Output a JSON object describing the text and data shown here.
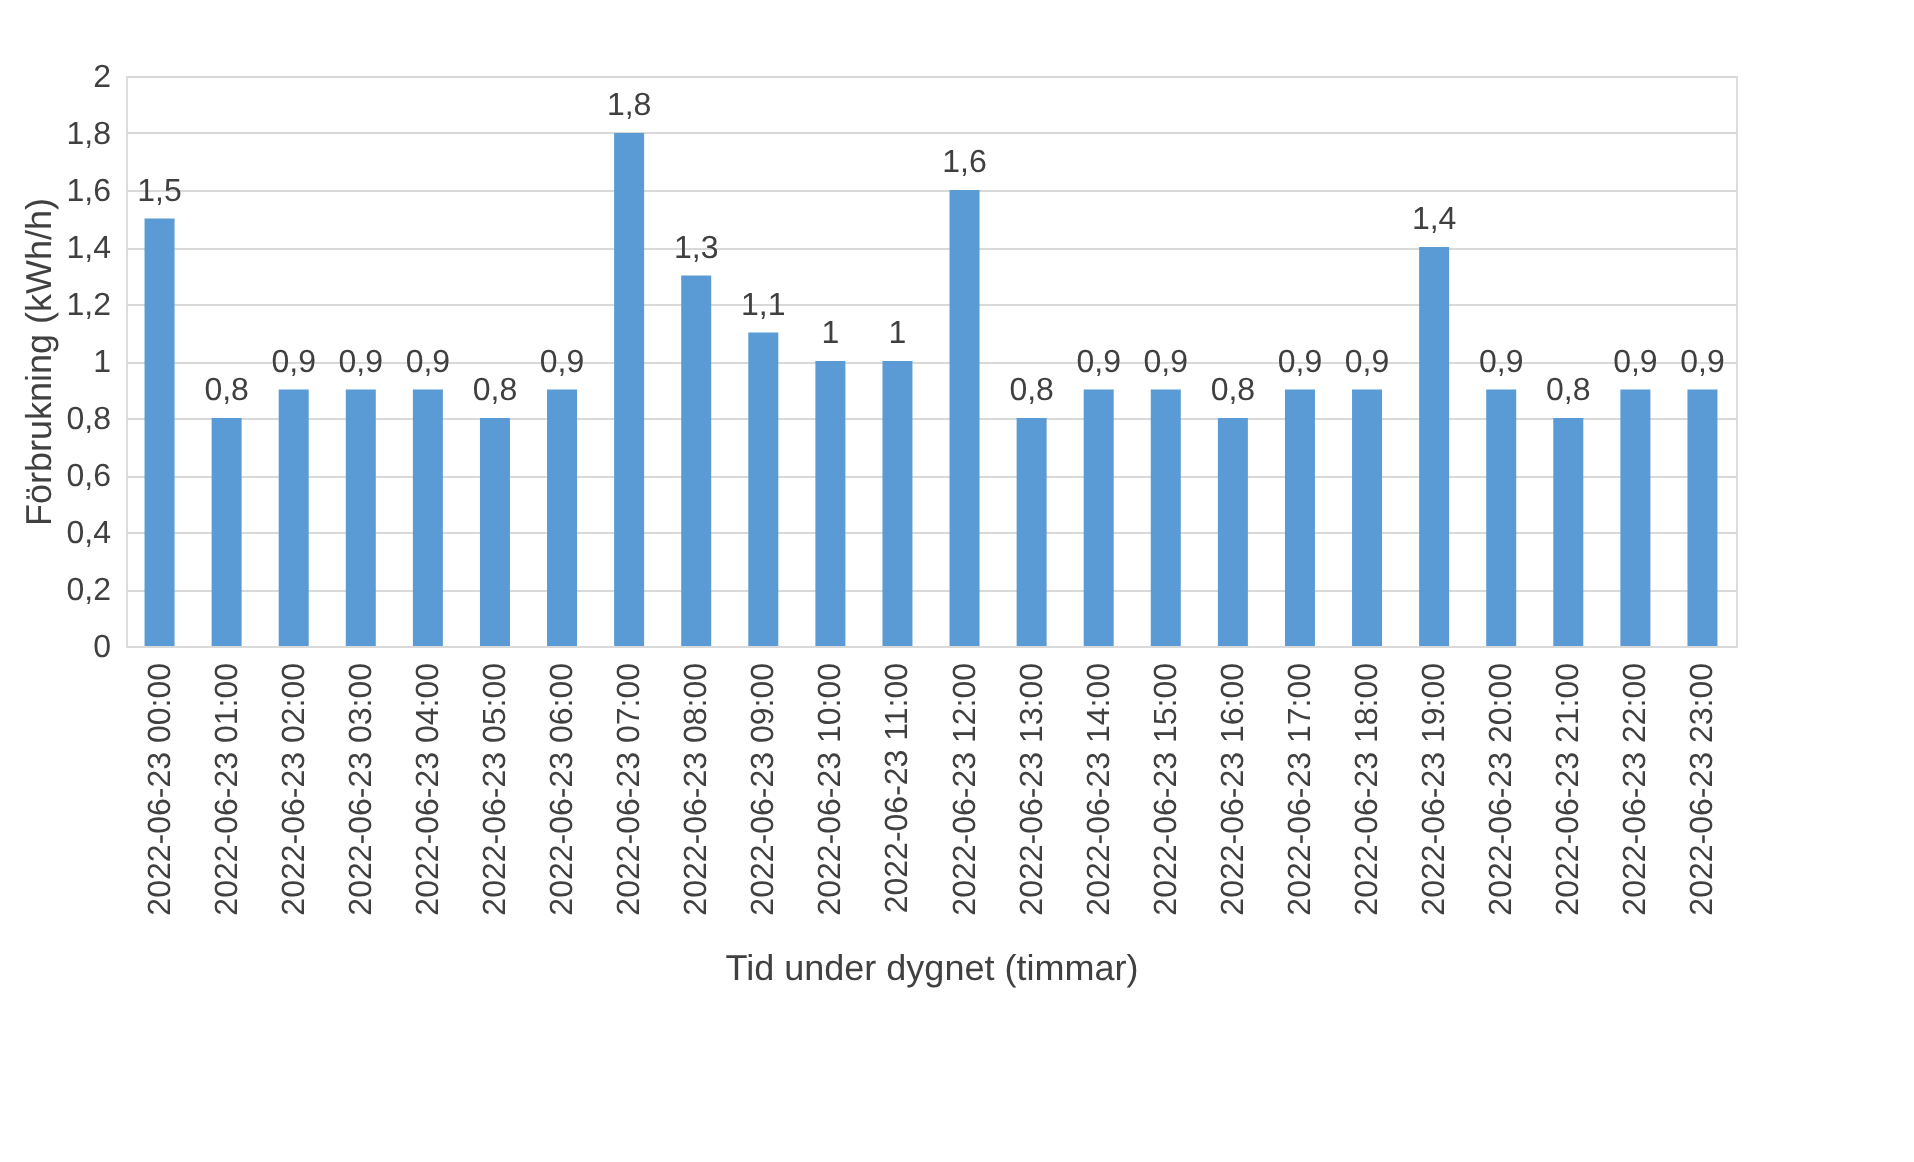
{
  "chart_data": {
    "type": "bar",
    "xlabel": "Tid under dygnet (timmar)",
    "ylabel": "Förbrukning (kWh/h)",
    "categories": [
      "2022-06-23 00:00",
      "2022-06-23 01:00",
      "2022-06-23 02:00",
      "2022-06-23 03:00",
      "2022-06-23 04:00",
      "2022-06-23 05:00",
      "2022-06-23 06:00",
      "2022-06-23 07:00",
      "2022-06-23 08:00",
      "2022-06-23 09:00",
      "2022-06-23 10:00",
      "2022-06-23 11:00",
      "2022-06-23 12:00",
      "2022-06-23 13:00",
      "2022-06-23 14:00",
      "2022-06-23 15:00",
      "2022-06-23 16:00",
      "2022-06-23 17:00",
      "2022-06-23 18:00",
      "2022-06-23 19:00",
      "2022-06-23 20:00",
      "2022-06-23 21:00",
      "2022-06-23 22:00",
      "2022-06-23 23:00"
    ],
    "values": [
      1.5,
      0.8,
      0.9,
      0.9,
      0.9,
      0.8,
      0.9,
      1.8,
      1.3,
      1.1,
      1,
      1,
      1.6,
      0.8,
      0.9,
      0.9,
      0.8,
      0.9,
      0.9,
      1.4,
      0.9,
      0.8,
      0.9,
      0.9
    ],
    "value_labels": [
      "1,5",
      "0,8",
      "0,9",
      "0,9",
      "0,9",
      "0,8",
      "0,9",
      "1,8",
      "1,3",
      "1,1",
      "1",
      "1",
      "1,6",
      "0,8",
      "0,9",
      "0,9",
      "0,8",
      "0,9",
      "0,9",
      "1,4",
      "0,9",
      "0,8",
      "0,9",
      "0,9"
    ],
    "color": "#5b9bd5",
    "ylim": [
      0,
      2
    ],
    "yticks": [
      0,
      {
        "value": 0.2,
        "label": "0,2"
      },
      {
        "value": 0.4,
        "label": "0,4"
      },
      {
        "value": 0.6,
        "label": "0,6"
      },
      {
        "value": 0.8,
        "label": "0,8"
      },
      1,
      {
        "value": 1.2,
        "label": "1,2"
      },
      {
        "value": 1.4,
        "label": "1,4"
      },
      {
        "value": 1.6,
        "label": "1,6"
      },
      {
        "value": 1.8,
        "label": "1,8"
      },
      2
    ],
    "grid": "y"
  }
}
